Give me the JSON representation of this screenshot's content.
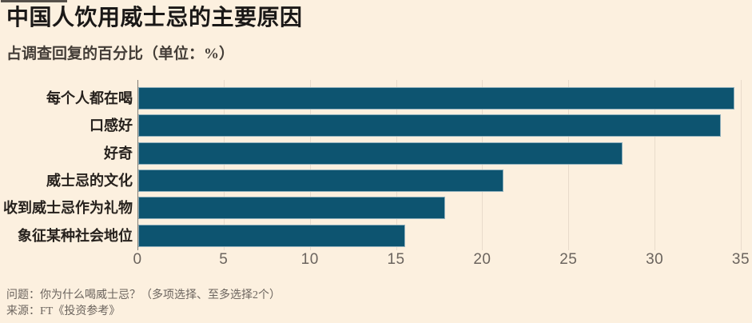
{
  "header": {
    "title": "中国人饮用威士忌的主要原因",
    "subtitle": "占调查回复的百分比（单位：%）"
  },
  "chart_data": {
    "type": "bar",
    "orientation": "horizontal",
    "title": "中国人饮用威士忌的主要原因",
    "subtitle": "占调查回复的百分比（单位：%）",
    "categories": [
      "每个人都在喝",
      "口感好",
      "好奇",
      "威士忌的文化",
      "收到威士忌作为礼物",
      "象征某种社会地位"
    ],
    "values": [
      34.6,
      33.8,
      28.1,
      21.2,
      17.8,
      15.5
    ],
    "xlabel": "",
    "ylabel": "",
    "xlim": [
      0,
      35
    ],
    "xticks": [
      0,
      5,
      10,
      15,
      20,
      25,
      30,
      35
    ],
    "grid": true,
    "legend": false,
    "bar_color": "#0D5470"
  },
  "footer": {
    "question": "问题：你为什么喝威士忌？（多项选择、至多选择2个）",
    "source": "来源：FT《投资参考》"
  },
  "colors": {
    "background": "#FCF0DF",
    "bar": "#0D5470",
    "gridline": "#E8DBCB",
    "axis_line": "#827C75",
    "tick_text": "#6B645E",
    "title_text": "#1A1817"
  }
}
